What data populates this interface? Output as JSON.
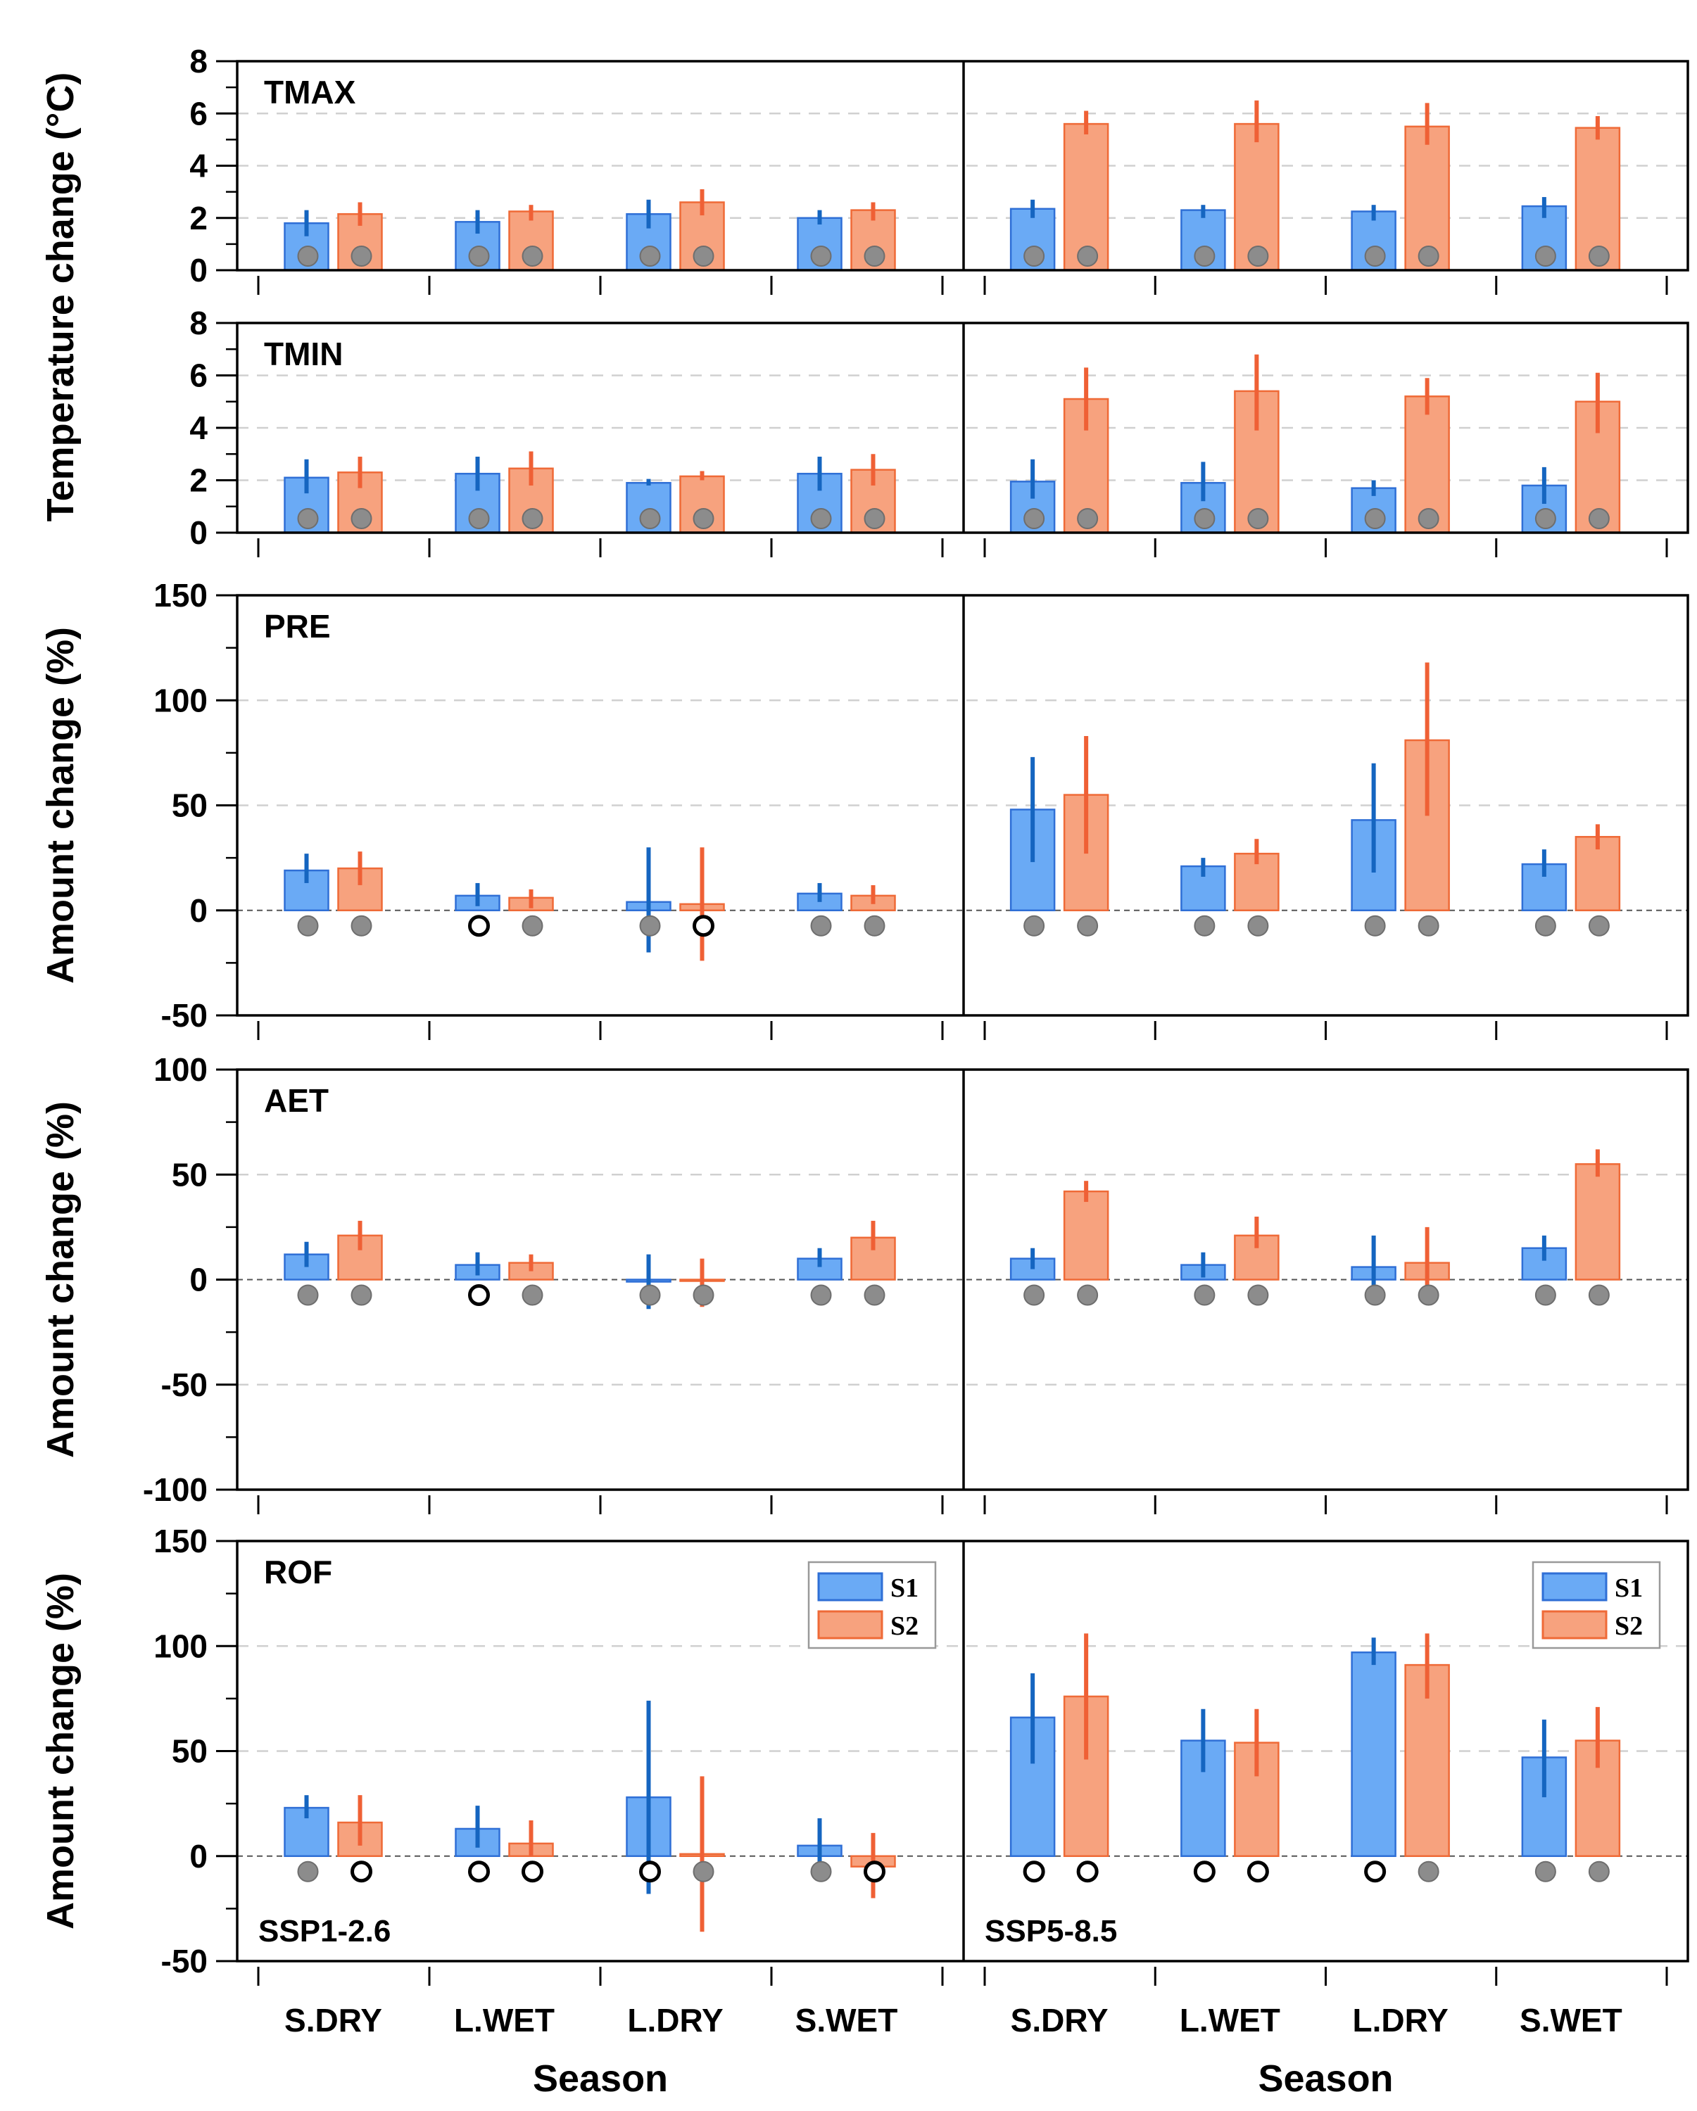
{
  "chart_data": {
    "type": "bar",
    "categories": [
      "S.DRY",
      "L.WET",
      "L.DRY",
      "S.WET"
    ],
    "series_names": [
      "S1",
      "S2"
    ],
    "colors": {
      "S1_fill": "#6aaaf5",
      "S1_edge": "#2f6fd6",
      "S1_err": "#1565c0",
      "S2_fill": "#f7a27e",
      "S2_edge": "#ef6a37",
      "S2_err": "#ef6035",
      "sig": "#8c8c8c",
      "nonsig": "#000000"
    },
    "scenarios": [
      "SSP1-2.6",
      "SSP5-8.5"
    ],
    "xlabel": "Season",
    "ylabels": [
      {
        "text": "Temperature change (°C)",
        "panels": [
          0,
          1
        ]
      },
      {
        "text": "Amount change (%)",
        "panels": [
          2
        ]
      },
      {
        "text": "Amount change (%)",
        "panels": [
          3
        ]
      },
      {
        "text": "Amount change (%)",
        "panels": [
          4
        ]
      }
    ],
    "panels": [
      {
        "label": "TMAX",
        "ylim": [
          0,
          8
        ],
        "yticks": [
          "0",
          "2",
          "4",
          "6",
          "8"
        ],
        "minor_step": 1,
        "zero_line": false,
        "scenarios": [
          {
            "S1": [
              [
                1.8,
                1.3,
                2.3
              ],
              [
                1.85,
                1.4,
                2.3
              ],
              [
                2.15,
                1.6,
                2.7
              ],
              [
                2.0,
                1.75,
                2.3
              ]
            ],
            "S2": [
              [
                2.15,
                1.7,
                2.6
              ],
              [
                2.25,
                1.9,
                2.5
              ],
              [
                2.6,
                2.1,
                3.1
              ],
              [
                2.3,
                1.9,
                2.6
              ]
            ],
            "sig1": [
              true,
              true,
              true,
              true
            ],
            "sig2": [
              true,
              true,
              true,
              true
            ]
          },
          {
            "S1": [
              [
                2.35,
                2.0,
                2.7
              ],
              [
                2.3,
                2.0,
                2.5
              ],
              [
                2.25,
                1.9,
                2.5
              ],
              [
                2.45,
                2.0,
                2.8
              ]
            ],
            "S2": [
              [
                5.6,
                5.2,
                6.1
              ],
              [
                5.6,
                4.9,
                6.5
              ],
              [
                5.5,
                4.8,
                6.4
              ],
              [
                5.45,
                5.0,
                5.9
              ]
            ],
            "sig1": [
              true,
              true,
              true,
              true
            ],
            "sig2": [
              true,
              true,
              true,
              true
            ]
          }
        ]
      },
      {
        "label": "TMIN",
        "ylim": [
          0,
          8
        ],
        "yticks": [
          "0",
          "2",
          "4",
          "6",
          "8"
        ],
        "minor_step": 1,
        "zero_line": false,
        "scenarios": [
          {
            "S1": [
              [
                2.1,
                1.5,
                2.8
              ],
              [
                2.25,
                1.6,
                2.9
              ],
              [
                1.9,
                1.8,
                2.05
              ],
              [
                2.25,
                1.6,
                2.9
              ]
            ],
            "S2": [
              [
                2.3,
                1.7,
                2.9
              ],
              [
                2.45,
                1.8,
                3.1
              ],
              [
                2.15,
                2.0,
                2.35
              ],
              [
                2.4,
                1.8,
                3.0
              ]
            ],
            "sig1": [
              true,
              true,
              true,
              true
            ],
            "sig2": [
              true,
              true,
              true,
              true
            ]
          },
          {
            "S1": [
              [
                1.95,
                1.3,
                2.8
              ],
              [
                1.9,
                1.2,
                2.7
              ],
              [
                1.7,
                1.4,
                2.0
              ],
              [
                1.8,
                1.1,
                2.5
              ]
            ],
            "S2": [
              [
                5.1,
                3.9,
                6.3
              ],
              [
                5.4,
                3.9,
                6.8
              ],
              [
                5.2,
                4.5,
                5.9
              ],
              [
                5.0,
                3.8,
                6.1
              ]
            ],
            "sig1": [
              true,
              true,
              true,
              true
            ],
            "sig2": [
              true,
              true,
              true,
              true
            ]
          }
        ]
      },
      {
        "label": "PRE",
        "ylim": [
          -50,
          150
        ],
        "yticks": [
          "-50",
          "0",
          "50",
          "100",
          "150"
        ],
        "minor_step": 25,
        "zero_line": true,
        "scenarios": [
          {
            "S1": [
              [
                19,
                13,
                27
              ],
              [
                7,
                2,
                13
              ],
              [
                4,
                -20,
                30
              ],
              [
                8,
                4,
                13
              ]
            ],
            "S2": [
              [
                20,
                12,
                28
              ],
              [
                6,
                1,
                10
              ],
              [
                3,
                -24,
                30
              ],
              [
                7,
                3,
                12
              ]
            ],
            "sig1": [
              true,
              false,
              true,
              true
            ],
            "sig2": [
              true,
              true,
              false,
              true
            ]
          },
          {
            "S1": [
              [
                48,
                23,
                73
              ],
              [
                21,
                16,
                25
              ],
              [
                43,
                18,
                70
              ],
              [
                22,
                16,
                29
              ]
            ],
            "S2": [
              [
                55,
                27,
                83
              ],
              [
                27,
                22,
                34
              ],
              [
                81,
                45,
                118
              ],
              [
                35,
                29,
                41
              ]
            ],
            "sig1": [
              true,
              true,
              true,
              true
            ],
            "sig2": [
              true,
              true,
              true,
              true
            ]
          }
        ]
      },
      {
        "label": "AET",
        "ylim": [
          -100,
          100
        ],
        "yticks": [
          "-100",
          "-50",
          "0",
          "50",
          "100"
        ],
        "minor_step": 25,
        "zero_line": true,
        "scenarios": [
          {
            "S1": [
              [
                12,
                6,
                18
              ],
              [
                7,
                2,
                13
              ],
              [
                -1,
                -14,
                12
              ],
              [
                10,
                6,
                15
              ]
            ],
            "S2": [
              [
                21,
                14,
                28
              ],
              [
                8,
                4,
                12
              ],
              [
                0,
                -13,
                10
              ],
              [
                20,
                14,
                28
              ]
            ],
            "sig1": [
              true,
              false,
              true,
              true
            ],
            "sig2": [
              true,
              true,
              true,
              true
            ]
          },
          {
            "S1": [
              [
                10,
                5,
                15
              ],
              [
                7,
                1,
                13
              ],
              [
                6,
                -10,
                21
              ],
              [
                15,
                9,
                21
              ]
            ],
            "S2": [
              [
                42,
                37,
                47
              ],
              [
                21,
                15,
                30
              ],
              [
                8,
                -11,
                25
              ],
              [
                55,
                49,
                62
              ]
            ],
            "sig1": [
              true,
              true,
              true,
              true
            ],
            "sig2": [
              true,
              true,
              true,
              true
            ]
          }
        ]
      },
      {
        "label": "ROF",
        "ylim": [
          -50,
          150
        ],
        "yticks": [
          "-50",
          "0",
          "50",
          "100",
          "150"
        ],
        "minor_step": 25,
        "zero_line": true,
        "scenarios": [
          {
            "S1": [
              [
                23,
                18,
                29
              ],
              [
                13,
                4,
                24
              ],
              [
                28,
                -18,
                74
              ],
              [
                5,
                -9,
                18
              ]
            ],
            "S2": [
              [
                16,
                5,
                29
              ],
              [
                6,
                0,
                17
              ],
              [
                1,
                -36,
                38
              ],
              [
                -5,
                -20,
                11
              ]
            ],
            "sig1": [
              true,
              false,
              false,
              true
            ],
            "sig2": [
              false,
              false,
              true,
              false
            ]
          },
          {
            "S1": [
              [
                66,
                44,
                87
              ],
              [
                55,
                40,
                70
              ],
              [
                97,
                91,
                104
              ],
              [
                47,
                28,
                65
              ]
            ],
            "S2": [
              [
                76,
                46,
                106
              ],
              [
                54,
                38,
                70
              ],
              [
                91,
                75,
                106
              ],
              [
                55,
                42,
                71
              ]
            ],
            "sig1": [
              false,
              false,
              false,
              true
            ],
            "sig2": [
              false,
              false,
              true,
              true
            ]
          }
        ]
      }
    ]
  }
}
